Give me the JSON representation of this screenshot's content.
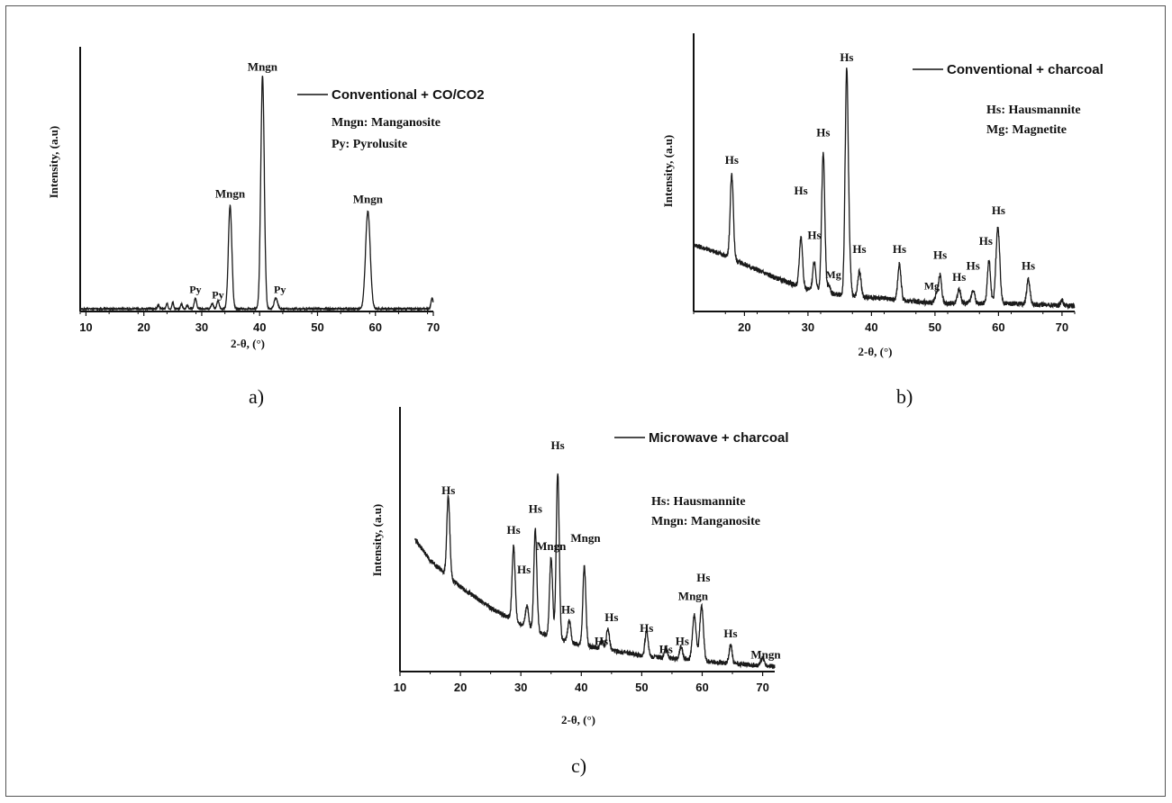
{
  "chart_data": [
    {
      "type": "line",
      "panel_label": "a)",
      "legend": "Conventional + CO/CO2",
      "legend_notes": [
        "Mngn: Manganosite",
        "Py: Pyrolusite"
      ],
      "xlabel": "2-θ, (°)",
      "ylabel": "Intensity, (a.u)",
      "xlim": [
        9,
        70
      ],
      "ylim": [
        0,
        100
      ],
      "xticks": [
        "10",
        "20",
        "30",
        "40",
        "50",
        "60",
        "70"
      ],
      "grid": false,
      "baseline": [
        [
          9,
          1
        ],
        [
          70,
          1
        ]
      ],
      "peaks": [
        {
          "x": 22.5,
          "h": 1.5,
          "w": 0.15
        },
        {
          "x": 24.0,
          "h": 2.0,
          "w": 0.15
        },
        {
          "x": 25.0,
          "h": 2.5,
          "w": 0.15
        },
        {
          "x": 26.5,
          "h": 2.0,
          "w": 0.15
        },
        {
          "x": 27.5,
          "h": 1.5,
          "w": 0.15
        },
        {
          "x": 28.9,
          "h": 4.0,
          "w": 0.2
        },
        {
          "x": 31.8,
          "h": 2.0,
          "w": 0.2
        },
        {
          "x": 32.8,
          "h": 3.0,
          "w": 0.2
        },
        {
          "x": 34.9,
          "h": 39.0,
          "w": 0.3
        },
        {
          "x": 40.5,
          "h": 88.0,
          "w": 0.3
        },
        {
          "x": 42.8,
          "h": 4.0,
          "w": 0.3
        },
        {
          "x": 58.7,
          "h": 37.0,
          "w": 0.4
        },
        {
          "x": 69.8,
          "h": 4.0,
          "w": 0.2
        }
      ],
      "annotations": [
        {
          "text": "Mngn",
          "x": 40.5,
          "y": 91
        },
        {
          "text": "Mngn",
          "x": 34.9,
          "y": 43
        },
        {
          "text": "Mngn",
          "x": 58.7,
          "y": 41
        },
        {
          "text": "Py",
          "x": 28.9,
          "y": 7
        },
        {
          "text": "Py",
          "x": 32.8,
          "y": 5
        },
        {
          "text": "Py",
          "x": 43.5,
          "y": 7
        }
      ]
    },
    {
      "type": "line",
      "panel_label": "b)",
      "legend": "Conventional + charcoal",
      "legend_notes": [
        "Hs: Hausmannite",
        "Mg: Magnetite"
      ],
      "xlabel": "2-θ, (°)",
      "ylabel": "Intensity, (a.u)",
      "xlim": [
        12,
        72
      ],
      "ylim": [
        0,
        100
      ],
      "xticks": [
        "20",
        "30",
        "40",
        "50",
        "60",
        "70"
      ],
      "grid": false,
      "baseline": [
        [
          12,
          24
        ],
        [
          16,
          21
        ],
        [
          20,
          17
        ],
        [
          25,
          12
        ],
        [
          30,
          8
        ],
        [
          35,
          6
        ],
        [
          40,
          5
        ],
        [
          50,
          3
        ],
        [
          60,
          3
        ],
        [
          72,
          2
        ]
      ],
      "peaks": [
        {
          "x": 18.0,
          "h": 30,
          "w": 0.25
        },
        {
          "x": 28.9,
          "h": 18,
          "w": 0.25
        },
        {
          "x": 31.0,
          "h": 10,
          "w": 0.25
        },
        {
          "x": 32.4,
          "h": 50,
          "w": 0.25
        },
        {
          "x": 33.3,
          "h": 3,
          "w": 0.2
        },
        {
          "x": 36.1,
          "h": 81,
          "w": 0.25
        },
        {
          "x": 36.6,
          "h": 8,
          "w": 0.2
        },
        {
          "x": 38.1,
          "h": 9,
          "w": 0.25
        },
        {
          "x": 44.4,
          "h": 13,
          "w": 0.25
        },
        {
          "x": 50.2,
          "h": 3,
          "w": 0.25
        },
        {
          "x": 50.8,
          "h": 10,
          "w": 0.25
        },
        {
          "x": 53.8,
          "h": 5,
          "w": 0.25
        },
        {
          "x": 56.0,
          "h": 5,
          "w": 0.25
        },
        {
          "x": 58.5,
          "h": 15,
          "w": 0.25
        },
        {
          "x": 59.9,
          "h": 27,
          "w": 0.3
        },
        {
          "x": 64.7,
          "h": 9,
          "w": 0.25
        },
        {
          "x": 70.0,
          "h": 2,
          "w": 0.2
        }
      ],
      "annotations": [
        {
          "text": "Hs",
          "x": 36.1,
          "y": 90
        },
        {
          "text": "Hs",
          "x": 18.0,
          "y": 53
        },
        {
          "text": "Hs",
          "x": 28.9,
          "y": 42
        },
        {
          "text": "Hs",
          "x": 31.0,
          "y": 26
        },
        {
          "text": "Hs",
          "x": 32.4,
          "y": 63
        },
        {
          "text": "Mg",
          "x": 34.0,
          "y": 12
        },
        {
          "text": "Hs",
          "x": 38.1,
          "y": 21
        },
        {
          "text": "Hs",
          "x": 44.4,
          "y": 21
        },
        {
          "text": "Hs",
          "x": 50.8,
          "y": 19
        },
        {
          "text": "Mg",
          "x": 49.5,
          "y": 8
        },
        {
          "text": "Hs",
          "x": 53.8,
          "y": 11
        },
        {
          "text": "Hs",
          "x": 56.0,
          "y": 15
        },
        {
          "text": "Hs",
          "x": 58.0,
          "y": 24
        },
        {
          "text": "Hs",
          "x": 60.0,
          "y": 35
        },
        {
          "text": "Hs",
          "x": 64.7,
          "y": 15
        }
      ]
    },
    {
      "type": "line",
      "panel_label": "c)",
      "legend": "Microwave + charcoal",
      "legend_notes": [
        "Hs: Hausmannite",
        "Mngn: Manganosite"
      ],
      "xlabel": "2-θ, (°)",
      "ylabel": "Intensity, (a.u)",
      "xlim": [
        10,
        72
      ],
      "ylim": [
        0,
        100
      ],
      "xticks": [
        "10",
        "20",
        "30",
        "40",
        "50",
        "60",
        "70"
      ],
      "grid": false,
      "baseline": [
        [
          12.5,
          50
        ],
        [
          15,
          42
        ],
        [
          18,
          36
        ],
        [
          20,
          32
        ],
        [
          25,
          24
        ],
        [
          30,
          18
        ],
        [
          35,
          13
        ],
        [
          40,
          10
        ],
        [
          45,
          8
        ],
        [
          50,
          6
        ],
        [
          55,
          5
        ],
        [
          60,
          4
        ],
        [
          65,
          3
        ],
        [
          72,
          2
        ]
      ],
      "peaks": [
        {
          "x": 18.0,
          "h": 30,
          "w": 0.25
        },
        {
          "x": 28.8,
          "h": 28,
          "w": 0.25
        },
        {
          "x": 31.0,
          "h": 8,
          "w": 0.25
        },
        {
          "x": 32.4,
          "h": 38,
          "w": 0.25
        },
        {
          "x": 35.0,
          "h": 30,
          "w": 0.25
        },
        {
          "x": 36.1,
          "h": 63,
          "w": 0.25
        },
        {
          "x": 38.0,
          "h": 8,
          "w": 0.25
        },
        {
          "x": 40.5,
          "h": 30,
          "w": 0.25
        },
        {
          "x": 43.4,
          "h": 3,
          "w": 0.25
        },
        {
          "x": 44.4,
          "h": 8,
          "w": 0.25
        },
        {
          "x": 50.8,
          "h": 10,
          "w": 0.25
        },
        {
          "x": 54.0,
          "h": 4,
          "w": 0.25
        },
        {
          "x": 56.5,
          "h": 5,
          "w": 0.25
        },
        {
          "x": 58.7,
          "h": 17,
          "w": 0.3
        },
        {
          "x": 59.9,
          "h": 21,
          "w": 0.3
        },
        {
          "x": 64.7,
          "h": 7,
          "w": 0.25
        },
        {
          "x": 70.0,
          "h": 3,
          "w": 0.25
        }
      ],
      "annotations": [
        {
          "text": "Hs",
          "x": 36.1,
          "y": 84
        },
        {
          "text": "Hs",
          "x": 18.0,
          "y": 67
        },
        {
          "text": "Hs",
          "x": 28.8,
          "y": 52
        },
        {
          "text": "Hs",
          "x": 30.5,
          "y": 37
        },
        {
          "text": "Hs",
          "x": 32.4,
          "y": 60
        },
        {
          "text": "Mngn",
          "x": 35.0,
          "y": 46
        },
        {
          "text": "Hs",
          "x": 37.8,
          "y": 22
        },
        {
          "text": "Mngn",
          "x": 40.7,
          "y": 49
        },
        {
          "text": "Hs",
          "x": 43.3,
          "y": 10
        },
        {
          "text": "Hs",
          "x": 45.0,
          "y": 19
        },
        {
          "text": "Hs",
          "x": 50.8,
          "y": 15
        },
        {
          "text": "Hs",
          "x": 54.0,
          "y": 7
        },
        {
          "text": "Hs",
          "x": 56.7,
          "y": 10
        },
        {
          "text": "Mngn",
          "x": 58.5,
          "y": 27
        },
        {
          "text": "Hs",
          "x": 60.2,
          "y": 34
        },
        {
          "text": "Hs",
          "x": 64.7,
          "y": 13
        },
        {
          "text": "Mngn",
          "x": 70.5,
          "y": 5
        }
      ]
    }
  ]
}
